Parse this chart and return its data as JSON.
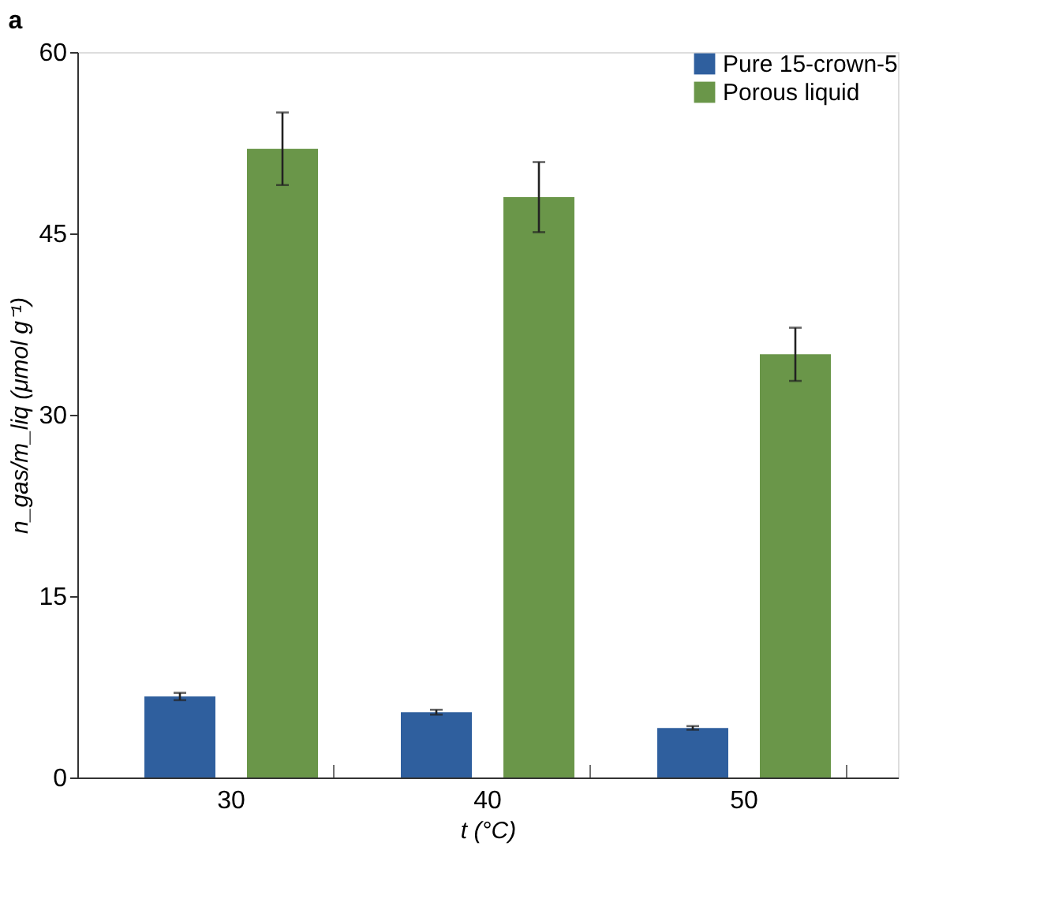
{
  "chart_data": {
    "type": "bar",
    "xlabel": "t (°C)",
    "ylabel": "n_gas/m_liq (μmol g⁻¹)",
    "annotations": [
      "a"
    ],
    "categories": [
      "30",
      "40",
      "50"
    ],
    "series": [
      {
        "name": "Pure 15-crown-5",
        "color": "#2f5f9e",
        "values": [
          6.7,
          5.4,
          4.1
        ],
        "errors": [
          0.3,
          0.2,
          0.15
        ]
      },
      {
        "name": "Porous liquid",
        "color": "#6a9649",
        "values": [
          52,
          48,
          35
        ],
        "errors": [
          3,
          2.9,
          2.2
        ]
      }
    ],
    "ylim": [
      0,
      60
    ],
    "yticks": [
      0,
      15,
      30,
      45,
      60
    ],
    "grid": false,
    "legend": "top right"
  }
}
